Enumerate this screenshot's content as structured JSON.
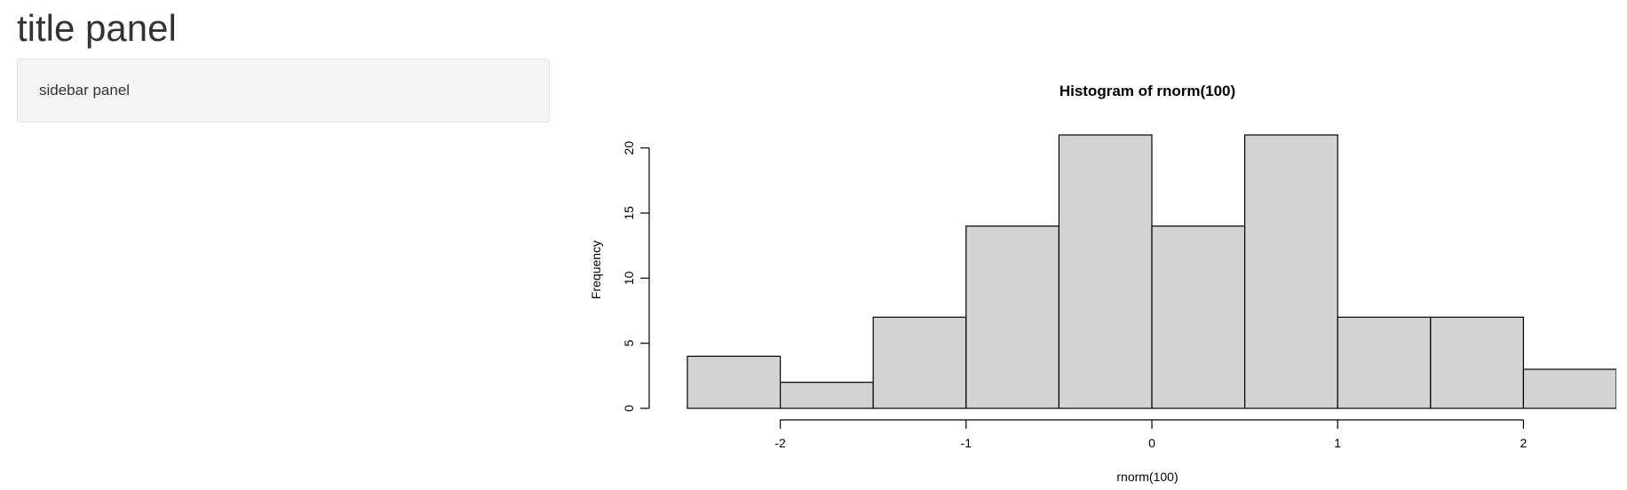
{
  "page": {
    "title": "title panel",
    "sidebar_text": "sidebar panel"
  },
  "chart_data": {
    "type": "bar",
    "title": "Histogram of rnorm(100)",
    "xlabel": "rnorm(100)",
    "ylabel": "Frequency",
    "bins": [
      {
        "x0": -2.5,
        "x1": -2.0,
        "count": 4
      },
      {
        "x0": -2.0,
        "x1": -1.5,
        "count": 2
      },
      {
        "x0": -1.5,
        "x1": -1.0,
        "count": 7
      },
      {
        "x0": -1.0,
        "x1": -0.5,
        "count": 14
      },
      {
        "x0": -0.5,
        "x1": 0.0,
        "count": 21
      },
      {
        "x0": 0.0,
        "x1": 0.5,
        "count": 14
      },
      {
        "x0": 0.5,
        "x1": 1.0,
        "count": 21
      },
      {
        "x0": 1.0,
        "x1": 1.5,
        "count": 7
      },
      {
        "x0": 1.5,
        "x1": 2.0,
        "count": 7
      },
      {
        "x0": 2.0,
        "x1": 2.5,
        "count": 3
      }
    ],
    "xticks": [
      -2,
      -1,
      0,
      1,
      2
    ],
    "yticks": [
      0,
      5,
      10,
      15,
      20
    ],
    "xlim": [
      -2.5,
      2.5
    ],
    "ylim": [
      0,
      21
    ],
    "bar_color": "#d3d3d3",
    "border_color": "#000000",
    "grid": false,
    "legend": false
  }
}
